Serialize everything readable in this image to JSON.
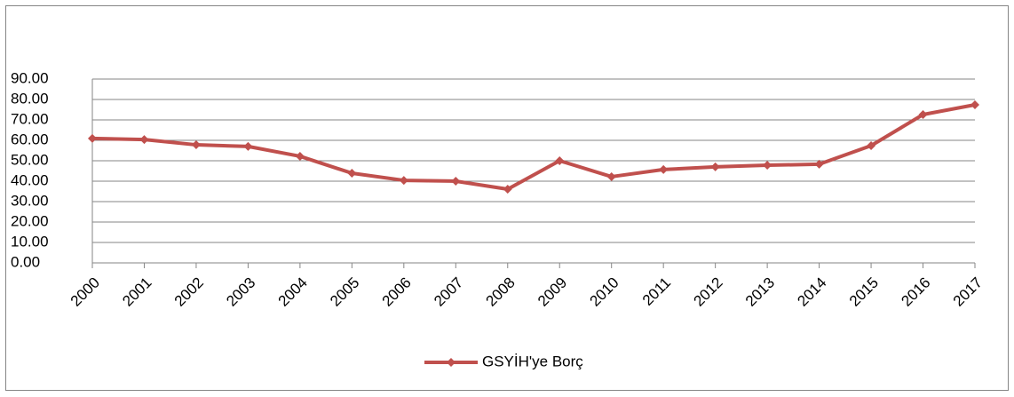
{
  "chart_data": {
    "type": "line",
    "categories": [
      "2000",
      "2001",
      "2002",
      "2003",
      "2004",
      "2005",
      "2006",
      "2007",
      "2008",
      "2009",
      "2010",
      "2011",
      "2012",
      "2013",
      "2014",
      "2015",
      "2016",
      "2017"
    ],
    "series": [
      {
        "name": "GSYİH'ye Borç",
        "color": "#c0504d",
        "values": [
          60.9,
          60.4,
          57.8,
          57.0,
          52.2,
          43.9,
          40.4,
          40.0,
          36.1,
          50.0,
          42.2,
          45.7,
          47.0,
          47.8,
          48.3,
          57.4,
          72.6,
          77.4
        ]
      }
    ],
    "ylim": [
      0,
      90
    ],
    "yticks": [
      {
        "value": 0,
        "label": "0.00"
      },
      {
        "value": 10,
        "label": "10.00"
      },
      {
        "value": 20,
        "label": "20.00"
      },
      {
        "value": 30,
        "label": "30.00"
      },
      {
        "value": 40,
        "label": "40.00"
      },
      {
        "value": 50,
        "label": "50.00"
      },
      {
        "value": 60,
        "label": "60.00"
      },
      {
        "value": 70,
        "label": "70.00"
      },
      {
        "value": 80,
        "label": "80.00"
      },
      {
        "value": 90,
        "label": "90.00"
      }
    ],
    "grid": true,
    "legend": "bottom"
  }
}
